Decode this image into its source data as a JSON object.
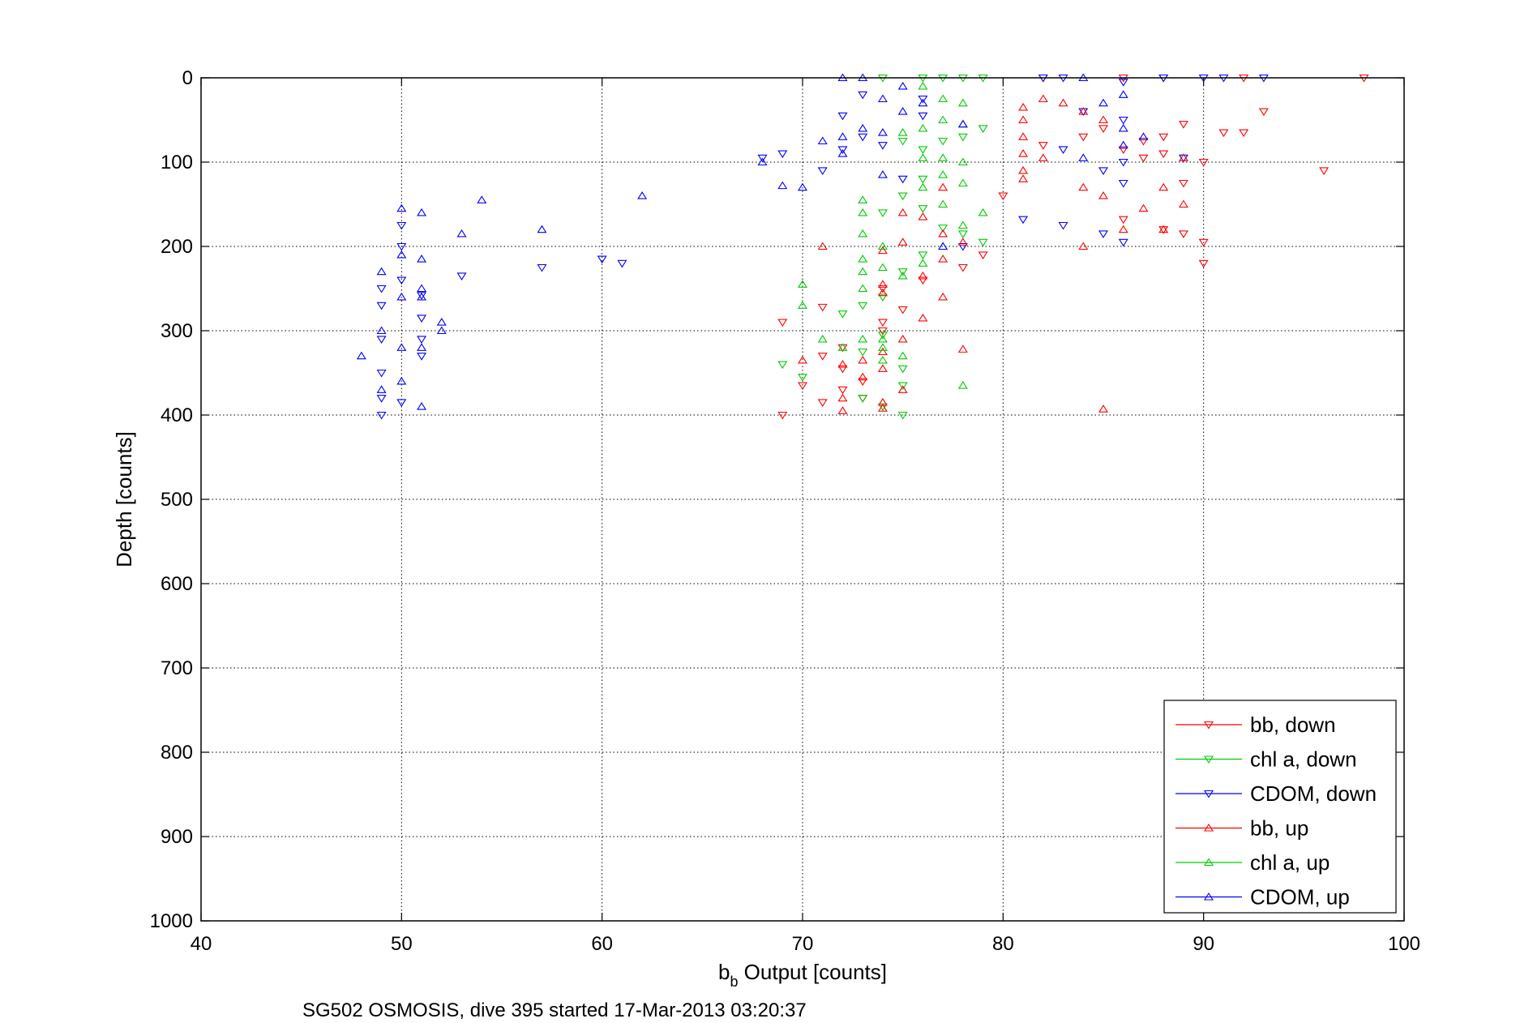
{
  "chart_data": {
    "type": "scatter",
    "title": "",
    "caption": "SG502 OSMOSIS, dive 395 started 17-Mar-2013 03:20:37",
    "xlabel_main": "b",
    "xlabel_sub": "b",
    "xlabel_rest": " Output [counts]",
    "ylabel": "Depth [counts]",
    "xlim": [
      40,
      100
    ],
    "ylim": [
      0,
      1000
    ],
    "y_reversed": true,
    "grid": true,
    "legend_position": "bottom-right",
    "x_ticks": [
      "40",
      "50",
      "60",
      "70",
      "80",
      "90",
      "100"
    ],
    "y_ticks": [
      "0",
      "100",
      "200",
      "300",
      "400",
      "500",
      "600",
      "700",
      "800",
      "900",
      "1000"
    ],
    "series": [
      {
        "name": "bb, down",
        "marker": "triangle-down",
        "color": "#ff0000",
        "points": [
          [
            98,
            0
          ],
          [
            92,
            0
          ],
          [
            88,
            0
          ],
          [
            86,
            0
          ],
          [
            82,
            0
          ],
          [
            93,
            40
          ],
          [
            92,
            65
          ],
          [
            91,
            65
          ],
          [
            89,
            55
          ],
          [
            88,
            70
          ],
          [
            87,
            75
          ],
          [
            86,
            85
          ],
          [
            85,
            60
          ],
          [
            84,
            70
          ],
          [
            82,
            80
          ],
          [
            88,
            90
          ],
          [
            87,
            95
          ],
          [
            90,
            100
          ],
          [
            96,
            110
          ],
          [
            89,
            125
          ],
          [
            86,
            168
          ],
          [
            88,
            180
          ],
          [
            89,
            185
          ],
          [
            90,
            195
          ],
          [
            90,
            220
          ],
          [
            79,
            210
          ],
          [
            78,
            225
          ],
          [
            76,
            240
          ],
          [
            75,
            275
          ],
          [
            74,
            290
          ],
          [
            72,
            320
          ],
          [
            71,
            330
          ],
          [
            72,
            345
          ],
          [
            73,
            360
          ],
          [
            70,
            365
          ],
          [
            72,
            370
          ],
          [
            73,
            380
          ],
          [
            71,
            385
          ],
          [
            69,
            400
          ],
          [
            69,
            290
          ],
          [
            71,
            272
          ],
          [
            74,
            250
          ],
          [
            74,
            300
          ],
          [
            80,
            140
          ]
        ]
      },
      {
        "name": "chl a, down",
        "marker": "triangle-down",
        "color": "#00cc00",
        "points": [
          [
            74,
            0
          ],
          [
            76,
            0
          ],
          [
            77,
            0
          ],
          [
            78,
            0
          ],
          [
            79,
            0
          ],
          [
            79,
            60
          ],
          [
            78,
            70
          ],
          [
            77,
            75
          ],
          [
            76,
            85
          ],
          [
            76,
            120
          ],
          [
            75,
            140
          ],
          [
            74,
            160
          ],
          [
            76,
            155
          ],
          [
            77,
            178
          ],
          [
            78,
            185
          ],
          [
            79,
            195
          ],
          [
            76,
            210
          ],
          [
            75,
            230
          ],
          [
            74,
            260
          ],
          [
            73,
            270
          ],
          [
            72,
            280
          ],
          [
            74,
            305
          ],
          [
            73,
            325
          ],
          [
            75,
            345
          ],
          [
            75,
            365
          ],
          [
            73,
            380
          ],
          [
            74,
            390
          ],
          [
            75,
            400
          ],
          [
            70,
            355
          ],
          [
            69,
            340
          ],
          [
            75,
            75
          ]
        ]
      },
      {
        "name": "CDOM, down",
        "marker": "triangle-down",
        "color": "#0000ff",
        "points": [
          [
            82,
            0
          ],
          [
            83,
            0
          ],
          [
            88,
            0
          ],
          [
            90,
            0
          ],
          [
            91,
            0
          ],
          [
            93,
            0
          ],
          [
            86,
            5
          ],
          [
            84,
            40
          ],
          [
            86,
            50
          ],
          [
            83,
            85
          ],
          [
            81,
            168
          ],
          [
            83,
            175
          ],
          [
            85,
            185
          ],
          [
            86,
            195
          ],
          [
            78,
            200
          ],
          [
            86,
            125
          ],
          [
            85,
            110
          ],
          [
            89,
            95
          ],
          [
            86,
            100
          ],
          [
            75,
            120
          ],
          [
            71,
            110
          ],
          [
            68,
            95
          ],
          [
            69,
            90
          ],
          [
            72,
            85
          ],
          [
            74,
            80
          ],
          [
            73,
            70
          ],
          [
            72,
            45
          ],
          [
            73,
            20
          ],
          [
            61,
            220
          ],
          [
            60,
            215
          ],
          [
            57,
            225
          ],
          [
            53,
            235
          ],
          [
            51,
            258
          ],
          [
            51,
            285
          ],
          [
            51,
            310
          ],
          [
            51,
            330
          ],
          [
            50,
            385
          ],
          [
            49,
            400
          ],
          [
            49,
            380
          ],
          [
            49,
            350
          ],
          [
            49,
            310
          ],
          [
            49,
            270
          ],
          [
            49,
            250
          ],
          [
            50,
            240
          ],
          [
            50,
            200
          ],
          [
            50,
            175
          ],
          [
            76,
            25
          ],
          [
            76,
            45
          ]
        ]
      },
      {
        "name": "bb, up",
        "marker": "triangle-up",
        "color": "#ff0000",
        "points": [
          [
            82,
            25
          ],
          [
            83,
            30
          ],
          [
            84,
            40
          ],
          [
            85,
            50
          ],
          [
            81,
            35
          ],
          [
            81,
            50
          ],
          [
            81,
            70
          ],
          [
            81,
            90
          ],
          [
            81,
            110
          ],
          [
            81,
            120
          ],
          [
            82,
            95
          ],
          [
            84,
            130
          ],
          [
            85,
            140
          ],
          [
            84,
            200
          ],
          [
            86,
            180
          ],
          [
            87,
            155
          ],
          [
            88,
            180
          ],
          [
            89,
            150
          ],
          [
            88,
            130
          ],
          [
            89,
            95
          ],
          [
            77,
            130
          ],
          [
            76,
            165
          ],
          [
            77,
            185
          ],
          [
            78,
            195
          ],
          [
            77,
            215
          ],
          [
            76,
            235
          ],
          [
            77,
            260
          ],
          [
            76,
            285
          ],
          [
            75,
            310
          ],
          [
            74,
            325
          ],
          [
            73,
            335
          ],
          [
            74,
            345
          ],
          [
            73,
            355
          ],
          [
            75,
            370
          ],
          [
            74,
            385
          ],
          [
            72,
            395
          ],
          [
            71,
            200
          ],
          [
            78,
            322
          ],
          [
            85,
            393
          ],
          [
            70,
            335
          ],
          [
            72,
            340
          ],
          [
            74,
            392
          ],
          [
            72,
            380
          ],
          [
            75,
            160
          ],
          [
            75,
            195
          ],
          [
            74,
            205
          ],
          [
            74,
            245
          ],
          [
            74,
            255
          ]
        ]
      },
      {
        "name": "chl a, up",
        "marker": "triangle-up",
        "color": "#00cc00",
        "points": [
          [
            76,
            10
          ],
          [
            77,
            25
          ],
          [
            78,
            30
          ],
          [
            77,
            50
          ],
          [
            78,
            55
          ],
          [
            76,
            60
          ],
          [
            75,
            65
          ],
          [
            78,
            100
          ],
          [
            77,
            115
          ],
          [
            76,
            130
          ],
          [
            78,
            125
          ],
          [
            77,
            150
          ],
          [
            73,
            145
          ],
          [
            73,
            160
          ],
          [
            73,
            185
          ],
          [
            74,
            200
          ],
          [
            73,
            215
          ],
          [
            74,
            225
          ],
          [
            75,
            235
          ],
          [
            76,
            220
          ],
          [
            77,
            200
          ],
          [
            78,
            175
          ],
          [
            79,
            160
          ],
          [
            70,
            245
          ],
          [
            70,
            270
          ],
          [
            71,
            310
          ],
          [
            73,
            310
          ],
          [
            74,
            320
          ],
          [
            74,
            335
          ],
          [
            75,
            330
          ],
          [
            72,
            320
          ],
          [
            73,
            230
          ],
          [
            73,
            250
          ],
          [
            74,
            310
          ],
          [
            78,
            365
          ],
          [
            77,
            95
          ],
          [
            76,
            95
          ]
        ]
      },
      {
        "name": "CDOM, up",
        "marker": "triangle-up",
        "color": "#0000ff",
        "points": [
          [
            72,
            0
          ],
          [
            73,
            0
          ],
          [
            75,
            10
          ],
          [
            74,
            25
          ],
          [
            75,
            40
          ],
          [
            73,
            60
          ],
          [
            74,
            65
          ],
          [
            72,
            70
          ],
          [
            71,
            75
          ],
          [
            72,
            90
          ],
          [
            70,
            130
          ],
          [
            69,
            128
          ],
          [
            68,
            100
          ],
          [
            74,
            115
          ],
          [
            84,
            95
          ],
          [
            86,
            80
          ],
          [
            86,
            60
          ],
          [
            87,
            70
          ],
          [
            85,
            30
          ],
          [
            86,
            20
          ],
          [
            84,
            0
          ],
          [
            62,
            140
          ],
          [
            57,
            180
          ],
          [
            54,
            145
          ],
          [
            53,
            185
          ],
          [
            52,
            290
          ],
          [
            52,
            300
          ],
          [
            51,
            160
          ],
          [
            51,
            215
          ],
          [
            51,
            250
          ],
          [
            51,
            260
          ],
          [
            51,
            320
          ],
          [
            51,
            390
          ],
          [
            50,
            155
          ],
          [
            50,
            210
          ],
          [
            50,
            260
          ],
          [
            50,
            320
          ],
          [
            50,
            360
          ],
          [
            49,
            230
          ],
          [
            49,
            300
          ],
          [
            49,
            370
          ],
          [
            48,
            330
          ],
          [
            77,
            200
          ],
          [
            76,
            30
          ],
          [
            78,
            55
          ]
        ]
      }
    ]
  }
}
